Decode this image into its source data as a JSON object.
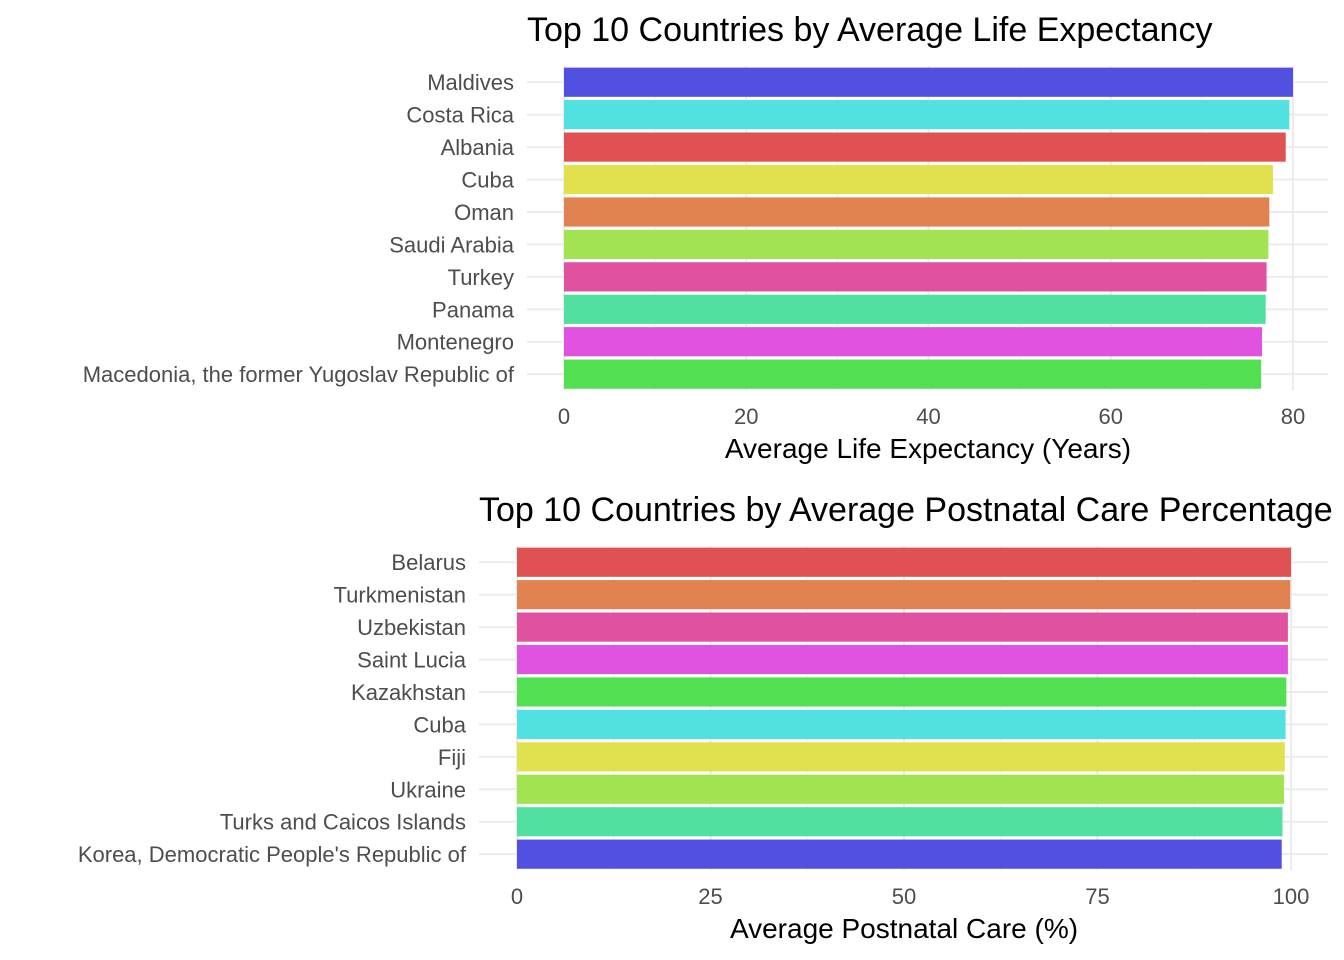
{
  "chart_data": [
    {
      "type": "bar",
      "orientation": "horizontal",
      "title": "Top 10 Countries by Average Life Expectancy",
      "xlabel": "Average Life Expectancy (Years)",
      "ylabel": "",
      "categories": [
        "Maldives",
        "Costa Rica",
        "Albania",
        "Cuba",
        "Oman",
        "Saudi Arabia",
        "Turkey",
        "Panama",
        "Montenegro",
        "Macedonia, the former Yugoslav Republic of"
      ],
      "values": [
        80.0,
        79.6,
        79.2,
        77.8,
        77.4,
        77.3,
        77.1,
        77.0,
        76.6,
        76.5
      ],
      "colors": [
        "#5150E0",
        "#50E1E0",
        "#E05252",
        "#E1E150",
        "#E08350",
        "#A3E250",
        "#E052A0",
        "#52E0A0",
        "#E052E0",
        "#52E052"
      ],
      "xlim": [
        0,
        80
      ],
      "ticks": [
        0,
        20,
        40,
        60,
        80
      ],
      "tick_labels": [
        "0",
        "20",
        "40",
        "60",
        "80"
      ],
      "grid": true,
      "legend": "none"
    },
    {
      "type": "bar",
      "orientation": "horizontal",
      "title": "Top 10 Countries by Average Postnatal Care Percentage",
      "xlabel": "Average Postnatal Care (%)",
      "ylabel": "",
      "categories": [
        "Belarus",
        "Turkmenistan",
        "Uzbekistan",
        "Saint Lucia",
        "Kazakhstan",
        "Cuba",
        "Fiji",
        "Ukraine",
        "Turks and Caicos Islands",
        "Korea, Democratic People's Republic of"
      ],
      "values": [
        100.0,
        99.9,
        99.6,
        99.6,
        99.4,
        99.3,
        99.2,
        99.1,
        98.9,
        98.8
      ],
      "colors": [
        "#E05252",
        "#E08350",
        "#E052A0",
        "#E052E0",
        "#52E052",
        "#50E1E0",
        "#E1E150",
        "#A3E250",
        "#52E0A0",
        "#5150E0"
      ],
      "xlim": [
        0,
        100
      ],
      "ticks": [
        0,
        25,
        50,
        75,
        100
      ],
      "tick_labels": [
        "0",
        "25",
        "50",
        "75",
        "100"
      ],
      "grid": true,
      "legend": "none"
    }
  ]
}
